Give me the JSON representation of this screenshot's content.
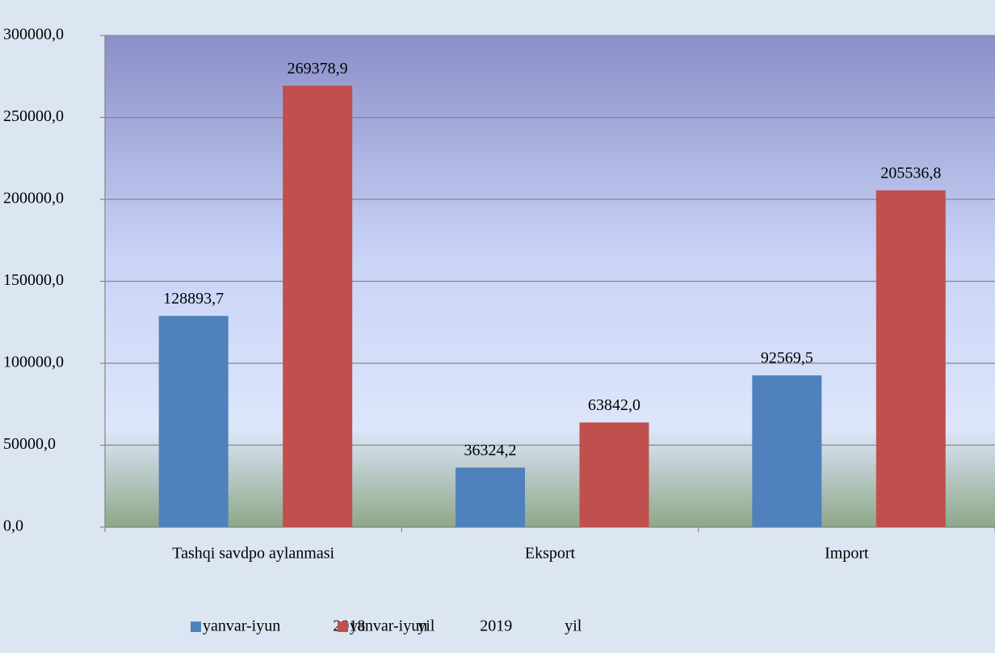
{
  "chart_data": {
    "type": "bar",
    "categories": [
      "Tashqi savdpo aylanmasi",
      "Eksport",
      "Import"
    ],
    "series": [
      {
        "name": "yanvar-iyun 2018 yil",
        "color": "#4f81bd",
        "values": [
          128893.7,
          36324.2,
          92569.5
        ],
        "value_labels": [
          "128893,7",
          "36324,2",
          "92569,5"
        ]
      },
      {
        "name": "yanvar-iyun 2019 yil",
        "color": "#c0504d",
        "values": [
          269378.9,
          63842.0,
          205536.8
        ],
        "value_labels": [
          "269378,9",
          "63842,0",
          "205536,8"
        ]
      }
    ],
    "ylim": [
      0,
      300000
    ],
    "yticks": [
      {
        "value": 0,
        "label": "0,0"
      },
      {
        "value": 50000,
        "label": "50000,0"
      },
      {
        "value": 100000,
        "label": "100000,0"
      },
      {
        "value": 150000,
        "label": "150000,0"
      },
      {
        "value": 200000,
        "label": "200000,0"
      },
      {
        "value": 250000,
        "label": "250000,0"
      },
      {
        "value": 300000,
        "label": "300000,0"
      }
    ],
    "grid": true,
    "legend": "bottom"
  }
}
